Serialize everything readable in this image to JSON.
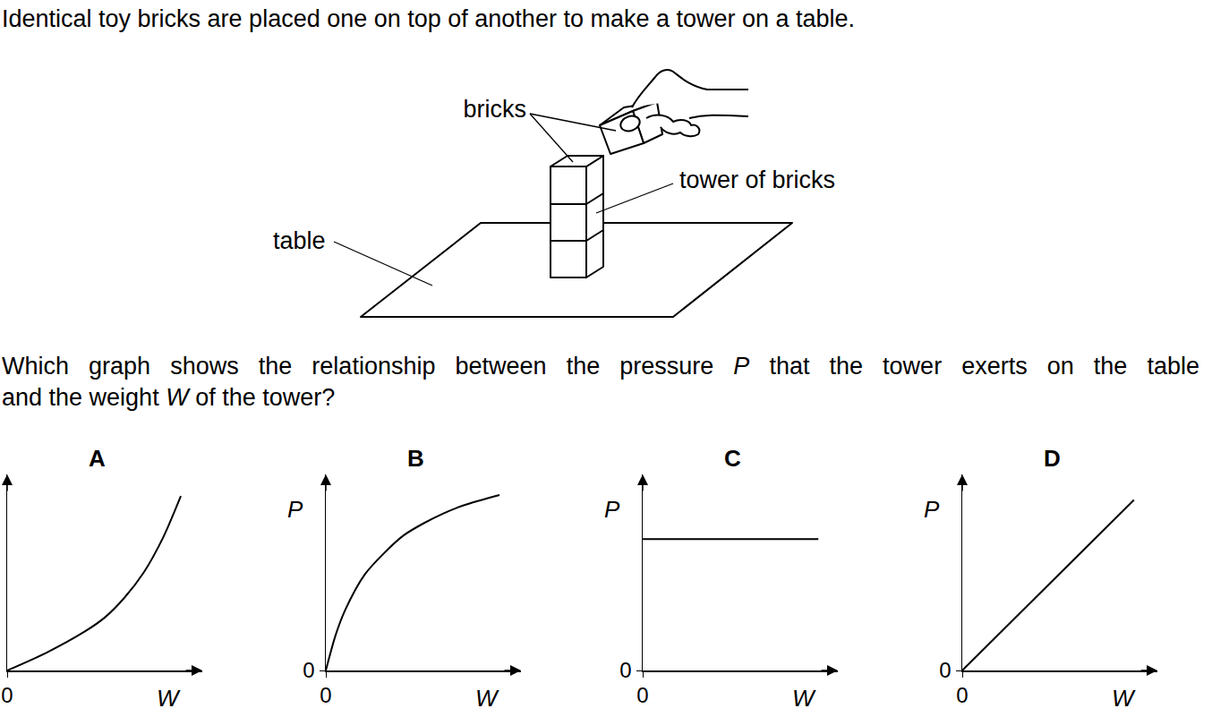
{
  "intro": "Identical toy bricks are placed one on top of another to make a tower on a table.",
  "diagram": {
    "labels": {
      "bricks": "bricks",
      "tower": "tower of bricks",
      "table": "table"
    }
  },
  "question": {
    "lines": [
      [
        {
          "text": "Which graph shows the relationship between the pressure "
        },
        {
          "text": "P",
          "italic": true
        },
        {
          "text": " that the tower exerts on the table"
        }
      ],
      [
        {
          "text": "and the weight "
        },
        {
          "text": "W",
          "italic": true
        },
        {
          "text": " of the tower?"
        }
      ]
    ]
  },
  "chart_data": [
    {
      "type": "line",
      "title": "A",
      "xlabel": "W",
      "x": [
        0,
        2,
        4,
        5,
        6,
        7,
        8,
        8.9
      ],
      "values": [
        0,
        0.9,
        2.0,
        2.7,
        3.7,
        5.0,
        6.8,
        8.9
      ],
      "xlim": [
        0,
        10
      ],
      "ylim": [
        0,
        10
      ],
      "xticks": [
        0
      ],
      "tick_labels": "x",
      "grid": false,
      "color": "#000000"
    },
    {
      "type": "line",
      "title": "B",
      "xlabel": "W",
      "ylabel": "P",
      "x": [
        0,
        0.5,
        1,
        2,
        3,
        4,
        5,
        6,
        7,
        8,
        8.9
      ],
      "values": [
        0,
        1.8,
        3.1,
        4.9,
        6.0,
        6.9,
        7.5,
        8.0,
        8.4,
        8.7,
        8.95
      ],
      "xlim": [
        0,
        10
      ],
      "ylim": [
        0,
        10
      ],
      "xticks": [
        0
      ],
      "yticks": [
        0
      ],
      "grid": false,
      "color": "#000000"
    },
    {
      "type": "line",
      "title": "C",
      "xlabel": "W",
      "ylabel": "P",
      "x": [
        0,
        9.0
      ],
      "values": [
        6.7,
        6.7
      ],
      "xlim": [
        0,
        10
      ],
      "ylim": [
        0,
        10
      ],
      "xticks": [
        0
      ],
      "yticks": [
        0
      ],
      "grid": false,
      "color": "#000000"
    },
    {
      "type": "line",
      "title": "D",
      "xlabel": "W",
      "ylabel": "P",
      "x": [
        0,
        8.8
      ],
      "values": [
        0,
        8.7
      ],
      "xlim": [
        0,
        10
      ],
      "ylim": [
        0,
        10
      ],
      "xticks": [
        0
      ],
      "yticks": [
        0
      ],
      "grid": false,
      "color": "#000000"
    }
  ]
}
